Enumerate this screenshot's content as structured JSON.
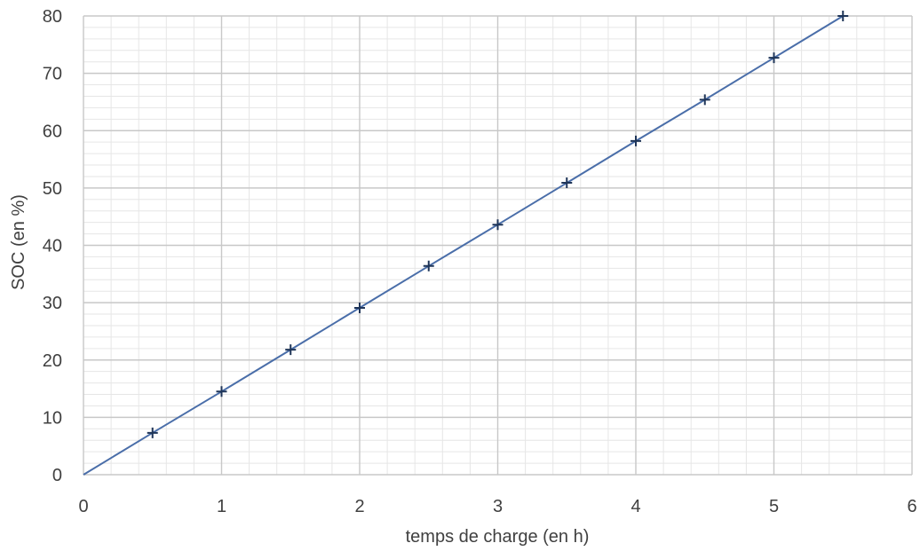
{
  "chart_data": {
    "type": "line",
    "title": "",
    "xlabel": "temps de charge (en h)",
    "ylabel": "SOC (en %)",
    "xlim": [
      0,
      6
    ],
    "ylim": [
      0,
      80
    ],
    "xticks": [
      0,
      1,
      2,
      3,
      4,
      5,
      6
    ],
    "yticks": [
      0,
      10,
      20,
      30,
      40,
      50,
      60,
      70,
      80
    ],
    "grid": true,
    "minor_grid": true,
    "line_color": "#4a6ea9",
    "marker_color": "#1f3558",
    "marker": "plus",
    "series": [
      {
        "x": [
          0,
          0.5,
          1,
          1.5,
          2,
          2.5,
          3,
          3.5,
          4,
          4.5,
          5,
          5.5
        ],
        "y": [
          0,
          7.3,
          14.5,
          21.8,
          29.1,
          36.4,
          43.6,
          50.9,
          58.2,
          65.4,
          72.7,
          80
        ],
        "markers_from_index": 1
      }
    ]
  }
}
